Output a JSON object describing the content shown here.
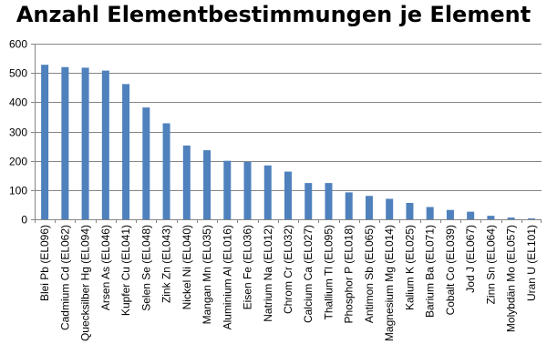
{
  "chart_data": {
    "type": "bar",
    "title": "Anzahl Elementbestimmungen je Element",
    "xlabel": "",
    "ylabel": "",
    "ylim": [
      0,
      600
    ],
    "yticks": [
      0,
      100,
      200,
      300,
      400,
      500,
      600
    ],
    "grid": true,
    "legend": "none",
    "bar_color": "#4f81bd",
    "categories": [
      "Blei Pb (EL096)",
      "Cadmium Cd (EL062)",
      "Quecksilber Hg (EL094)",
      "Arsen As (EL046)",
      "Kupfer Cu (EL041)",
      "Selen Se (EL048)",
      "Zink Zn (EL043)",
      "Nickel Ni (EL040)",
      "Mangan Mn (EL035)",
      "Aluminium Al (EL016)",
      "Eisen Fe (EL036)",
      "Natrium Na (EL012)",
      "Chrom Cr (EL032)",
      "Calcium Ca (EL027)",
      "Thallium Tl (EL095)",
      "Phosphor P (EL018)",
      "Antimon Sb (EL065)",
      "Magnesium Mg (EL014)",
      "Kalium K (EL025)",
      "Barium Ba (EL071)",
      "Cobalt Co (EL039)",
      "Jod J (EL067)",
      "Zinn Sn (EL064)",
      "Molybdän Mo (EL057)",
      "Uran U (EL101)"
    ],
    "values": [
      528,
      520,
      518,
      508,
      462,
      382,
      328,
      252,
      236,
      200,
      196,
      184,
      163,
      124,
      124,
      92,
      80,
      70,
      56,
      42,
      32,
      26,
      12,
      6,
      3
    ]
  }
}
